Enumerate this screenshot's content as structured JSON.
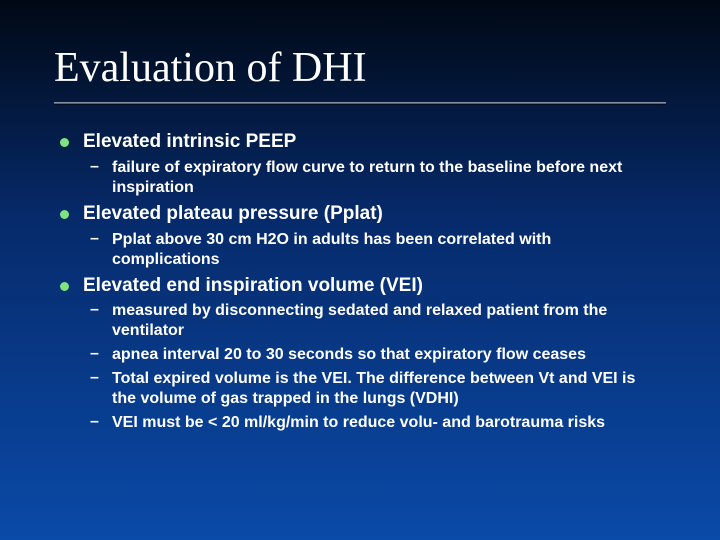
{
  "title": "Evaluation of DHI",
  "colors": {
    "bg_top": "#000814",
    "bg_mid": "#062a6a",
    "bg_bottom": "#0a4aa8",
    "text": "#ffffff",
    "bullet_dot": "#7fe37f"
  },
  "typography": {
    "title_family": "Times New Roman",
    "title_size_pt": 32,
    "body_family": "Arial",
    "l1_size_pt": 14,
    "l2_size_pt": 12,
    "body_weight": 700
  },
  "bullets": [
    {
      "label": "Elevated intrinsic PEEP",
      "subs": [
        "failure of expiratory flow curve to return to the baseline before next inspiration"
      ]
    },
    {
      "label": "Elevated plateau pressure (Pplat)",
      "subs": [
        "Pplat above 30 cm H2O in adults has been correlated with complications"
      ]
    },
    {
      "label": "Elevated end inspiration volume (VEI)",
      "subs": [
        "measured by disconnecting sedated and relaxed patient from the ventilator",
        "apnea interval 20 to 30 seconds so that expiratory flow ceases",
        "Total expired volume is the VEI. The difference between Vt and VEI is the volume of gas trapped in the lungs (VDHI)",
        "VEI must be < 20 ml/kg/min to reduce volu- and barotrauma risks"
      ]
    }
  ]
}
